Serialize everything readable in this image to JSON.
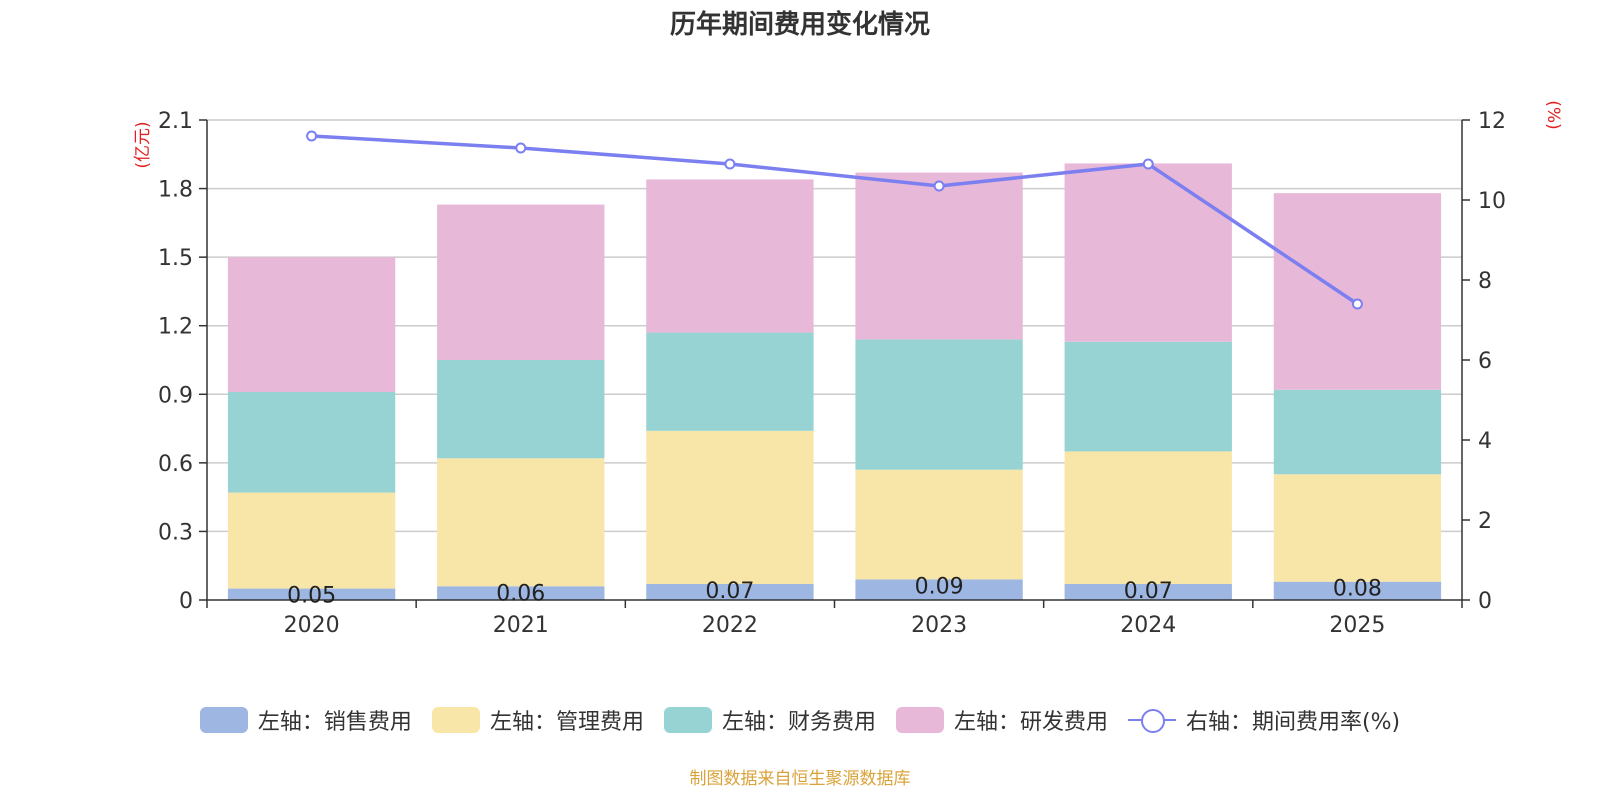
{
  "chart_data": {
    "type": "bar",
    "stacked": true,
    "title": "历年期间费用变化情况",
    "categories": [
      "2020",
      "2021",
      "2022",
      "2023",
      "2024",
      "2025"
    ],
    "series": [
      {
        "name": "左轴：销售费用",
        "axis": "left",
        "color": "#9db6e2",
        "values": [
          0.05,
          0.06,
          0.07,
          0.09,
          0.07,
          0.08
        ],
        "labels": [
          "0.05",
          "0.06",
          "0.07",
          "0.09",
          "0.07",
          "0.08"
        ]
      },
      {
        "name": "左轴：管理费用",
        "axis": "left",
        "color": "#f8e6a8",
        "values": [
          0.42,
          0.56,
          0.67,
          0.48,
          0.58,
          0.47
        ]
      },
      {
        "name": "左轴：财务费用",
        "axis": "left",
        "color": "#98d3d3",
        "values": [
          0.44,
          0.43,
          0.43,
          0.57,
          0.48,
          0.37
        ]
      },
      {
        "name": "左轴：研发费用",
        "axis": "left",
        "color": "#e7b8d8",
        "values": [
          0.59,
          0.68,
          0.67,
          0.73,
          0.78,
          0.86
        ]
      },
      {
        "name": "右轴：期间费用率(%)",
        "axis": "right",
        "type": "line",
        "color": "#7b7ff0",
        "values": [
          11.6,
          11.3,
          10.9,
          10.35,
          10.9,
          7.4
        ]
      }
    ],
    "left_axis": {
      "label": "(亿元)",
      "min": 0,
      "max": 2.1,
      "ticks": [
        0,
        0.3,
        0.6,
        0.9,
        1.2,
        1.5,
        1.8,
        2.1
      ],
      "tick_labels": [
        "0",
        "0.3",
        "0.6",
        "0.9",
        "1.2",
        "1.5",
        "1.8",
        "2.1"
      ]
    },
    "right_axis": {
      "label": "(%)",
      "min": 0,
      "max": 12,
      "ticks": [
        0,
        2,
        4,
        6,
        8,
        10,
        12
      ],
      "tick_labels": [
        "0",
        "2",
        "4",
        "6",
        "8",
        "10",
        "12"
      ]
    },
    "legend_position": "bottom",
    "grid": true
  },
  "source_text": "制图数据来自恒生聚源数据库"
}
